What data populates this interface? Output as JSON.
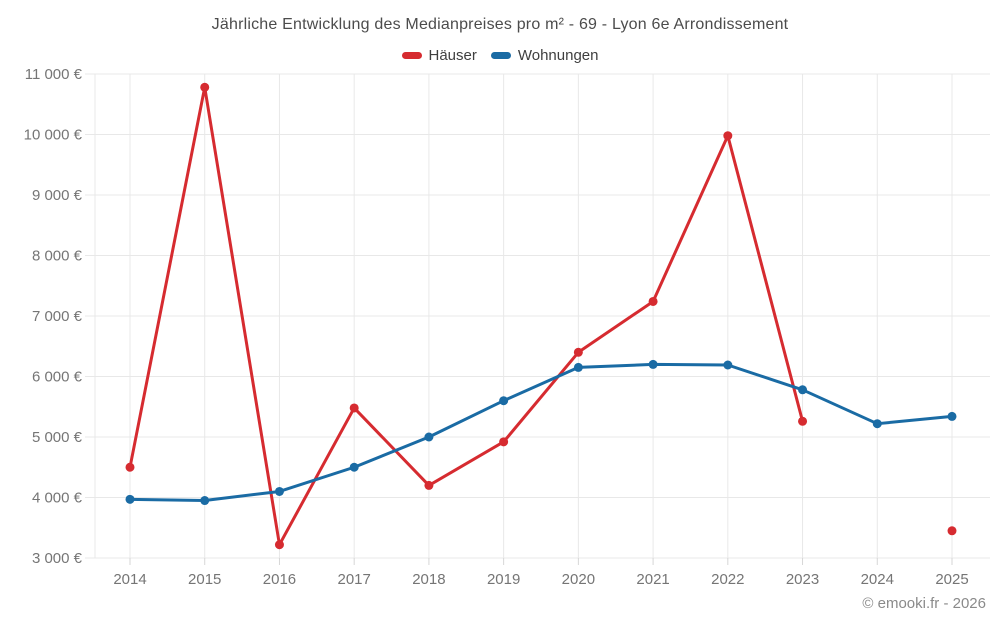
{
  "header": {
    "title": "Jährliche Entwicklung des Medianpreises pro m² - 69 - Lyon 6e Arrondissement"
  },
  "legend": {
    "items": [
      {
        "label": "Häuser",
        "color": "#d62b30"
      },
      {
        "label": "Wohnungen",
        "color": "#1a6ba4"
      }
    ]
  },
  "footer": {
    "attribution": "© emooki.fr - 2026"
  },
  "chart_data": {
    "type": "line",
    "title": "Jährliche Entwicklung des Medianpreises pro m² - 69 - Lyon 6e Arrondissement",
    "categories": [
      "2014",
      "2015",
      "2016",
      "2017",
      "2018",
      "2019",
      "2020",
      "2021",
      "2022",
      "2023",
      "2024",
      "2025"
    ],
    "series": [
      {
        "name": "Häuser",
        "color": "#d62b30",
        "values": [
          4500,
          10780,
          3220,
          5480,
          4200,
          4920,
          6400,
          7240,
          9980,
          5260,
          null,
          3450
        ]
      },
      {
        "name": "Wohnungen",
        "color": "#1a6ba4",
        "values": [
          3970,
          3950,
          4100,
          4500,
          5000,
          5600,
          6150,
          6200,
          6190,
          5780,
          5220,
          5340
        ]
      }
    ],
    "y_axis": {
      "range": [
        3000,
        11000
      ],
      "tick_step": 1000,
      "ticks": [
        {
          "value": 3000,
          "label": "3 000 €"
        },
        {
          "value": 4000,
          "label": "4 000 €"
        },
        {
          "value": 5000,
          "label": "5 000 €"
        },
        {
          "value": 6000,
          "label": "6 000 €"
        },
        {
          "value": 7000,
          "label": "7 000 €"
        },
        {
          "value": 8000,
          "label": "8 000 €"
        },
        {
          "value": 9000,
          "label": "9 000 €"
        },
        {
          "value": 10000,
          "label": "10 000 €"
        },
        {
          "value": 11000,
          "label": "11 000 €"
        }
      ]
    },
    "x_axis": {
      "labels": [
        "2014",
        "2015",
        "2016",
        "2017",
        "2018",
        "2019",
        "2020",
        "2021",
        "2022",
        "2023",
        "2024",
        "2025"
      ]
    },
    "grid": true,
    "legend_position": "top"
  },
  "colors": {
    "grid": "#e8e8e8",
    "tick": "#d6d6d6",
    "axis_text": "#757575",
    "title_text": "#4c4c4c",
    "legend_text": "#3f3f3f",
    "attribution_text": "#8a8a8a"
  }
}
